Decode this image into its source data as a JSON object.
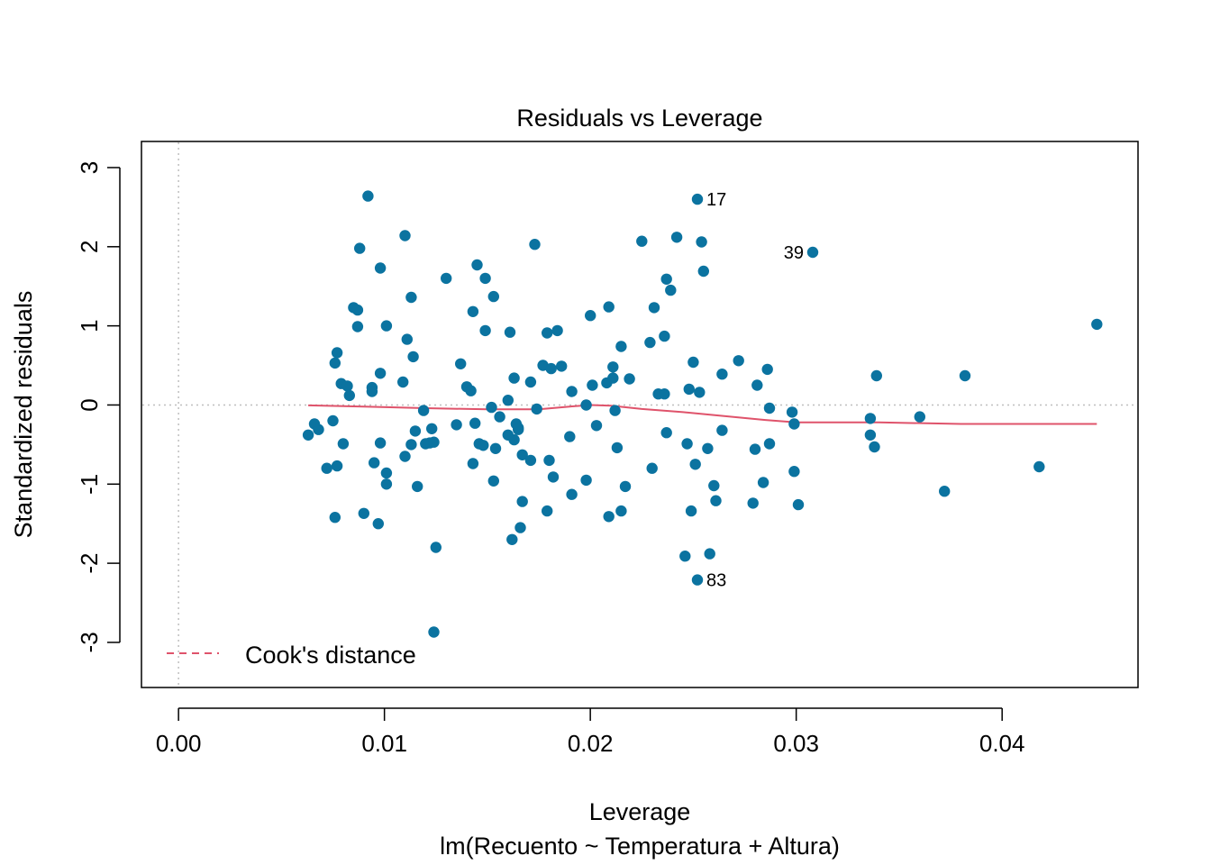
{
  "chart_data": {
    "type": "scatter",
    "title": "Residuals vs Leverage",
    "xlabel": "Leverage",
    "subtitle": "lm(Recuento ~ Temperatura + Altura)",
    "ylabel": "Standardized residuals",
    "xlim": [
      -0.0018,
      0.0466
    ],
    "ylim": [
      -3.57,
      3.33
    ],
    "x_ticks": [
      "0.00",
      "0.01",
      "0.02",
      "0.03",
      "0.04"
    ],
    "x_tick_values": [
      0.0,
      0.01,
      0.02,
      0.03,
      0.04
    ],
    "y_ticks": [
      "-3",
      "-2",
      "-1",
      "0",
      "1",
      "2",
      "3"
    ],
    "y_tick_values": [
      -3,
      -2,
      -1,
      0,
      1,
      2,
      3
    ],
    "point_color": "#0b73a0",
    "smooth_color": "#df536b",
    "reference_lines": {
      "x": 0,
      "y": 0,
      "style": "dotted",
      "color": "#bebebe"
    },
    "legend": {
      "position": "bottom-left",
      "entries": [
        {
          "label": "Cook's distance",
          "style": "dashed",
          "color": "#df536b"
        }
      ]
    },
    "labeled_points": [
      {
        "label": "17",
        "x": 0.0252,
        "y": 2.6
      },
      {
        "label": "39",
        "x": 0.0308,
        "y": 1.93
      },
      {
        "label": "83",
        "x": 0.0252,
        "y": -2.21
      }
    ],
    "points": [
      [
        0.0063,
        -0.38
      ],
      [
        0.0066,
        -0.24
      ],
      [
        0.0068,
        -0.31
      ],
      [
        0.0072,
        -0.8
      ],
      [
        0.0075,
        -0.2
      ],
      [
        0.0076,
        -1.42
      ],
      [
        0.0076,
        0.53
      ],
      [
        0.0077,
        0.66
      ],
      [
        0.0077,
        -0.77
      ],
      [
        0.0079,
        0.27
      ],
      [
        0.008,
        -0.49
      ],
      [
        0.0082,
        0.24
      ],
      [
        0.0083,
        0.12
      ],
      [
        0.0085,
        1.23
      ],
      [
        0.0087,
        1.2
      ],
      [
        0.0087,
        0.99
      ],
      [
        0.0088,
        1.98
      ],
      [
        0.009,
        -1.37
      ],
      [
        0.0092,
        2.64
      ],
      [
        0.0094,
        0.22
      ],
      [
        0.0094,
        0.17
      ],
      [
        0.0095,
        -0.73
      ],
      [
        0.0097,
        -1.5
      ],
      [
        0.0098,
        -0.48
      ],
      [
        0.0098,
        0.4
      ],
      [
        0.0098,
        1.73
      ],
      [
        0.0101,
        -0.86
      ],
      [
        0.0101,
        1.0
      ],
      [
        0.0101,
        -1.0
      ],
      [
        0.0109,
        0.29
      ],
      [
        0.011,
        -0.65
      ],
      [
        0.011,
        2.14
      ],
      [
        0.0111,
        0.83
      ],
      [
        0.0113,
        -0.5
      ],
      [
        0.0113,
        1.36
      ],
      [
        0.0114,
        0.61
      ],
      [
        0.0115,
        -0.33
      ],
      [
        0.0116,
        -1.03
      ],
      [
        0.0119,
        -0.07
      ],
      [
        0.012,
        -0.49
      ],
      [
        0.0122,
        -0.48
      ],
      [
        0.0123,
        -0.3
      ],
      [
        0.0124,
        -2.87
      ],
      [
        0.0124,
        -0.47
      ],
      [
        0.0125,
        -1.8
      ],
      [
        0.013,
        1.6
      ],
      [
        0.0135,
        -0.25
      ],
      [
        0.0137,
        0.52
      ],
      [
        0.014,
        0.23
      ],
      [
        0.0142,
        0.18
      ],
      [
        0.0143,
        1.18
      ],
      [
        0.0143,
        -0.74
      ],
      [
        0.0144,
        -0.23
      ],
      [
        0.0145,
        1.77
      ],
      [
        0.0146,
        -0.49
      ],
      [
        0.0148,
        -0.51
      ],
      [
        0.0149,
        1.6
      ],
      [
        0.0149,
        0.94
      ],
      [
        0.0152,
        -0.03
      ],
      [
        0.0153,
        1.37
      ],
      [
        0.0153,
        -0.96
      ],
      [
        0.0154,
        -0.55
      ],
      [
        0.0156,
        -0.15
      ],
      [
        0.016,
        0.06
      ],
      [
        0.016,
        -0.38
      ],
      [
        0.0161,
        0.92
      ],
      [
        0.0162,
        -1.7
      ],
      [
        0.0163,
        -0.44
      ],
      [
        0.0163,
        0.34
      ],
      [
        0.0164,
        -0.24
      ],
      [
        0.0165,
        -0.29
      ],
      [
        0.0165,
        -0.31
      ],
      [
        0.0166,
        -1.55
      ],
      [
        0.0167,
        -0.63
      ],
      [
        0.0167,
        -1.22
      ],
      [
        0.0171,
        0.29
      ],
      [
        0.0171,
        -0.7
      ],
      [
        0.0173,
        2.03
      ],
      [
        0.0174,
        -0.05
      ],
      [
        0.0177,
        0.5
      ],
      [
        0.0179,
        -1.34
      ],
      [
        0.0179,
        0.91
      ],
      [
        0.018,
        -0.7
      ],
      [
        0.0181,
        0.46
      ],
      [
        0.0182,
        -0.91
      ],
      [
        0.0184,
        0.94
      ],
      [
        0.0186,
        0.49
      ],
      [
        0.019,
        -0.4
      ],
      [
        0.0191,
        0.17
      ],
      [
        0.0191,
        -1.13
      ],
      [
        0.0198,
        -0.95
      ],
      [
        0.0198,
        0.0
      ],
      [
        0.02,
        1.13
      ],
      [
        0.0201,
        0.25
      ],
      [
        0.0203,
        -0.26
      ],
      [
        0.0208,
        0.28
      ],
      [
        0.0209,
        1.24
      ],
      [
        0.0209,
        -1.41
      ],
      [
        0.0211,
        0.34
      ],
      [
        0.0211,
        0.48
      ],
      [
        0.0212,
        -0.07
      ],
      [
        0.0213,
        -0.54
      ],
      [
        0.0215,
        0.74
      ],
      [
        0.0215,
        -1.34
      ],
      [
        0.0217,
        -1.03
      ],
      [
        0.0219,
        0.33
      ],
      [
        0.0225,
        2.07
      ],
      [
        0.0229,
        0.79
      ],
      [
        0.023,
        -0.8
      ],
      [
        0.0231,
        1.23
      ],
      [
        0.0233,
        0.14
      ],
      [
        0.0236,
        0.14
      ],
      [
        0.0236,
        0.87
      ],
      [
        0.0237,
        -0.35
      ],
      [
        0.0237,
        1.59
      ],
      [
        0.0239,
        1.45
      ],
      [
        0.0242,
        2.12
      ],
      [
        0.0246,
        -1.91
      ],
      [
        0.0247,
        -0.49
      ],
      [
        0.0248,
        0.2
      ],
      [
        0.0249,
        -1.34
      ],
      [
        0.025,
        0.54
      ],
      [
        0.0251,
        -0.75
      ],
      [
        0.0252,
        -2.21
      ],
      [
        0.0252,
        2.6
      ],
      [
        0.0253,
        0.16
      ],
      [
        0.0254,
        2.06
      ],
      [
        0.0255,
        1.69
      ],
      [
        0.0257,
        -0.55
      ],
      [
        0.0258,
        -1.88
      ],
      [
        0.026,
        -1.02
      ],
      [
        0.0261,
        -1.21
      ],
      [
        0.0264,
        0.39
      ],
      [
        0.0264,
        -0.32
      ],
      [
        0.0272,
        0.56
      ],
      [
        0.0279,
        -1.24
      ],
      [
        0.028,
        -0.56
      ],
      [
        0.0281,
        0.25
      ],
      [
        0.0284,
        -0.98
      ],
      [
        0.0286,
        0.45
      ],
      [
        0.0287,
        -0.04
      ],
      [
        0.0287,
        -0.49
      ],
      [
        0.0298,
        -0.09
      ],
      [
        0.0299,
        -0.24
      ],
      [
        0.0299,
        -0.84
      ],
      [
        0.0301,
        -1.26
      ],
      [
        0.0308,
        1.93
      ],
      [
        0.0336,
        -0.17
      ],
      [
        0.0336,
        -0.38
      ],
      [
        0.0338,
        -0.53
      ],
      [
        0.0339,
        0.37
      ],
      [
        0.036,
        -0.15
      ],
      [
        0.0372,
        -1.09
      ],
      [
        0.0382,
        0.37
      ],
      [
        0.0418,
        -0.78
      ],
      [
        0.0446,
        1.02
      ]
    ],
    "smooth_line": [
      [
        0.0063,
        -0.005
      ],
      [
        0.009,
        -0.02
      ],
      [
        0.012,
        -0.04
      ],
      [
        0.015,
        -0.055
      ],
      [
        0.0175,
        -0.055
      ],
      [
        0.019,
        -0.02
      ],
      [
        0.02,
        0.0
      ],
      [
        0.021,
        -0.01
      ],
      [
        0.0225,
        -0.05
      ],
      [
        0.0245,
        -0.09
      ],
      [
        0.0265,
        -0.14
      ],
      [
        0.0285,
        -0.19
      ],
      [
        0.03,
        -0.22
      ],
      [
        0.034,
        -0.22
      ],
      [
        0.038,
        -0.24
      ],
      [
        0.0446,
        -0.24
      ]
    ]
  }
}
